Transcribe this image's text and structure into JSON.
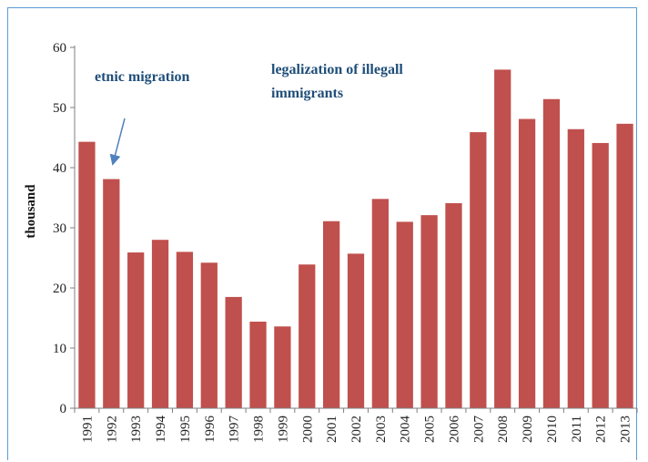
{
  "chart_data": {
    "type": "bar",
    "title": "",
    "xlabel": "",
    "ylabel": "thousand",
    "ylim": [
      0,
      60
    ],
    "yticks": [
      0,
      10,
      20,
      30,
      40,
      50,
      60
    ],
    "grid": false,
    "categories": [
      "1991",
      "1992",
      "1993",
      "1994",
      "1995",
      "1996",
      "1997",
      "1998",
      "1999",
      "2000",
      "2001",
      "2002",
      "2003",
      "2004",
      "2005",
      "2006",
      "2007",
      "2008",
      "2009",
      "2010",
      "2011",
      "2012",
      "2013"
    ],
    "series": [
      {
        "values": [
          44.3,
          38.1,
          25.9,
          28.0,
          26.0,
          24.2,
          18.5,
          14.4,
          13.6,
          23.9,
          31.1,
          25.7,
          34.8,
          31.0,
          32.1,
          34.1,
          45.9,
          56.3,
          48.1,
          51.4,
          46.4,
          44.1,
          47.3
        ],
        "color": "#c0504d"
      }
    ],
    "annotations": [
      {
        "text": "etnic migration",
        "target_category": "1992"
      },
      {
        "text_lines": [
          "legalization of illegall",
          "immigrants"
        ]
      }
    ]
  }
}
